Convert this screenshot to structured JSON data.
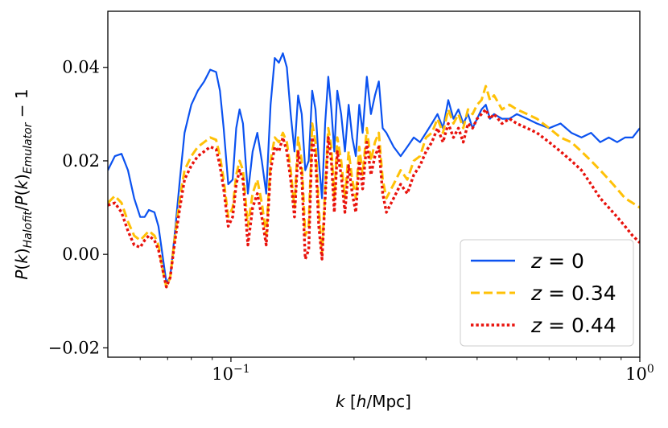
{
  "chart_data": {
    "type": "line",
    "xscale": "log",
    "xlim": [
      0.05,
      1.0
    ],
    "ylim": [
      -0.022,
      0.052
    ],
    "xlabel": "k  [h/Mpc]",
    "ylabel": "P(k)Halofit/P(k)Emulator − 1",
    "legend_position": "lower-right",
    "grid": false,
    "x_ticks": [
      {
        "value": 0.1,
        "label_base": "10",
        "label_exp": "−1"
      },
      {
        "value": 1.0,
        "label_base": "10",
        "label_exp": "0"
      }
    ],
    "y_ticks": [
      {
        "value": -0.02,
        "label": "−0.02"
      },
      {
        "value": 0.0,
        "label": "0.00"
      },
      {
        "value": 0.02,
        "label": "0.02"
      },
      {
        "value": 0.04,
        "label": "0.04"
      }
    ],
    "series": [
      {
        "name": "z = 0",
        "color": "#0b52f0",
        "style": "solid",
        "points": [
          [
            0.05,
            0.018
          ],
          [
            0.052,
            0.021
          ],
          [
            0.054,
            0.0215
          ],
          [
            0.056,
            0.018
          ],
          [
            0.058,
            0.012
          ],
          [
            0.06,
            0.008
          ],
          [
            0.0615,
            0.008
          ],
          [
            0.063,
            0.0095
          ],
          [
            0.065,
            0.009
          ],
          [
            0.0665,
            0.006
          ],
          [
            0.068,
            0.0
          ],
          [
            0.0695,
            -0.006
          ],
          [
            0.071,
            -0.005
          ],
          [
            0.073,
            0.005
          ],
          [
            0.075,
            0.016
          ],
          [
            0.077,
            0.026
          ],
          [
            0.08,
            0.032
          ],
          [
            0.083,
            0.035
          ],
          [
            0.086,
            0.037
          ],
          [
            0.089,
            0.0395
          ],
          [
            0.092,
            0.039
          ],
          [
            0.094,
            0.035
          ],
          [
            0.096,
            0.027
          ],
          [
            0.0985,
            0.015
          ],
          [
            0.101,
            0.016
          ],
          [
            0.103,
            0.027
          ],
          [
            0.105,
            0.031
          ],
          [
            0.107,
            0.028
          ],
          [
            0.11,
            0.013
          ],
          [
            0.113,
            0.022
          ],
          [
            0.116,
            0.026
          ],
          [
            0.119,
            0.02
          ],
          [
            0.122,
            0.013
          ],
          [
            0.125,
            0.032
          ],
          [
            0.128,
            0.042
          ],
          [
            0.131,
            0.041
          ],
          [
            0.134,
            0.043
          ],
          [
            0.137,
            0.04
          ],
          [
            0.14,
            0.03
          ],
          [
            0.143,
            0.022
          ],
          [
            0.146,
            0.034
          ],
          [
            0.149,
            0.03
          ],
          [
            0.152,
            0.018
          ],
          [
            0.155,
            0.02
          ],
          [
            0.158,
            0.035
          ],
          [
            0.161,
            0.031
          ],
          [
            0.164,
            0.02
          ],
          [
            0.167,
            0.012
          ],
          [
            0.17,
            0.028
          ],
          [
            0.173,
            0.038
          ],
          [
            0.176,
            0.031
          ],
          [
            0.179,
            0.022
          ],
          [
            0.182,
            0.035
          ],
          [
            0.186,
            0.03
          ],
          [
            0.19,
            0.022
          ],
          [
            0.194,
            0.032
          ],
          [
            0.198,
            0.025
          ],
          [
            0.202,
            0.021
          ],
          [
            0.206,
            0.032
          ],
          [
            0.21,
            0.026
          ],
          [
            0.215,
            0.038
          ],
          [
            0.22,
            0.03
          ],
          [
            0.225,
            0.034
          ],
          [
            0.23,
            0.037
          ],
          [
            0.235,
            0.027
          ],
          [
            0.24,
            0.026
          ],
          [
            0.25,
            0.023
          ],
          [
            0.26,
            0.021
          ],
          [
            0.27,
            0.023
          ],
          [
            0.28,
            0.025
          ],
          [
            0.29,
            0.024
          ],
          [
            0.3,
            0.026
          ],
          [
            0.31,
            0.028
          ],
          [
            0.32,
            0.03
          ],
          [
            0.33,
            0.027
          ],
          [
            0.34,
            0.033
          ],
          [
            0.35,
            0.029
          ],
          [
            0.36,
            0.031
          ],
          [
            0.37,
            0.028
          ],
          [
            0.38,
            0.03
          ],
          [
            0.39,
            0.027
          ],
          [
            0.4,
            0.029
          ],
          [
            0.41,
            0.031
          ],
          [
            0.42,
            0.032
          ],
          [
            0.43,
            0.029
          ],
          [
            0.44,
            0.03
          ],
          [
            0.46,
            0.029
          ],
          [
            0.48,
            0.029
          ],
          [
            0.5,
            0.03
          ],
          [
            0.53,
            0.029
          ],
          [
            0.56,
            0.028
          ],
          [
            0.6,
            0.027
          ],
          [
            0.64,
            0.028
          ],
          [
            0.68,
            0.026
          ],
          [
            0.72,
            0.025
          ],
          [
            0.76,
            0.026
          ],
          [
            0.8,
            0.024
          ],
          [
            0.84,
            0.025
          ],
          [
            0.88,
            0.024
          ],
          [
            0.92,
            0.025
          ],
          [
            0.96,
            0.025
          ],
          [
            1.0,
            0.027
          ]
        ]
      },
      {
        "name": "z = 0.34",
        "color": "#ffc107",
        "style": "dashed",
        "points": [
          [
            0.05,
            0.011
          ],
          [
            0.052,
            0.0125
          ],
          [
            0.054,
            0.011
          ],
          [
            0.056,
            0.007
          ],
          [
            0.058,
            0.004
          ],
          [
            0.06,
            0.003
          ],
          [
            0.0615,
            0.004
          ],
          [
            0.063,
            0.005
          ],
          [
            0.065,
            0.004
          ],
          [
            0.0665,
            0.002
          ],
          [
            0.068,
            -0.003
          ],
          [
            0.0695,
            -0.007
          ],
          [
            0.071,
            -0.005
          ],
          [
            0.073,
            0.004
          ],
          [
            0.075,
            0.012
          ],
          [
            0.077,
            0.018
          ],
          [
            0.08,
            0.021
          ],
          [
            0.083,
            0.023
          ],
          [
            0.086,
            0.024
          ],
          [
            0.089,
            0.025
          ],
          [
            0.092,
            0.0245
          ],
          [
            0.094,
            0.021
          ],
          [
            0.096,
            0.016
          ],
          [
            0.0985,
            0.008
          ],
          [
            0.101,
            0.01
          ],
          [
            0.103,
            0.017
          ],
          [
            0.105,
            0.02
          ],
          [
            0.107,
            0.018
          ],
          [
            0.11,
            0.006
          ],
          [
            0.113,
            0.013
          ],
          [
            0.116,
            0.016
          ],
          [
            0.119,
            0.011
          ],
          [
            0.122,
            0.004
          ],
          [
            0.125,
            0.02
          ],
          [
            0.128,
            0.025
          ],
          [
            0.131,
            0.024
          ],
          [
            0.134,
            0.026
          ],
          [
            0.137,
            0.024
          ],
          [
            0.14,
            0.018
          ],
          [
            0.143,
            0.01
          ],
          [
            0.146,
            0.025
          ],
          [
            0.149,
            0.02
          ],
          [
            0.152,
            0.004
          ],
          [
            0.155,
            0.006
          ],
          [
            0.158,
            0.028
          ],
          [
            0.161,
            0.024
          ],
          [
            0.164,
            0.01
          ],
          [
            0.167,
            0.0
          ],
          [
            0.17,
            0.014
          ],
          [
            0.173,
            0.027
          ],
          [
            0.176,
            0.023
          ],
          [
            0.179,
            0.012
          ],
          [
            0.182,
            0.025
          ],
          [
            0.186,
            0.02
          ],
          [
            0.19,
            0.012
          ],
          [
            0.194,
            0.022
          ],
          [
            0.198,
            0.016
          ],
          [
            0.202,
            0.012
          ],
          [
            0.206,
            0.023
          ],
          [
            0.21,
            0.017
          ],
          [
            0.215,
            0.027
          ],
          [
            0.22,
            0.02
          ],
          [
            0.225,
            0.024
          ],
          [
            0.23,
            0.026
          ],
          [
            0.235,
            0.016
          ],
          [
            0.24,
            0.012
          ],
          [
            0.25,
            0.015
          ],
          [
            0.26,
            0.018
          ],
          [
            0.27,
            0.016
          ],
          [
            0.28,
            0.02
          ],
          [
            0.29,
            0.021
          ],
          [
            0.3,
            0.025
          ],
          [
            0.31,
            0.026
          ],
          [
            0.32,
            0.029
          ],
          [
            0.33,
            0.026
          ],
          [
            0.34,
            0.031
          ],
          [
            0.35,
            0.028
          ],
          [
            0.36,
            0.03
          ],
          [
            0.37,
            0.027
          ],
          [
            0.38,
            0.031
          ],
          [
            0.39,
            0.03
          ],
          [
            0.4,
            0.032
          ],
          [
            0.41,
            0.033
          ],
          [
            0.42,
            0.036
          ],
          [
            0.43,
            0.033
          ],
          [
            0.44,
            0.034
          ],
          [
            0.46,
            0.031
          ],
          [
            0.48,
            0.032
          ],
          [
            0.5,
            0.031
          ],
          [
            0.53,
            0.03
          ],
          [
            0.56,
            0.029
          ],
          [
            0.6,
            0.027
          ],
          [
            0.64,
            0.025
          ],
          [
            0.68,
            0.024
          ],
          [
            0.72,
            0.022
          ],
          [
            0.76,
            0.02
          ],
          [
            0.8,
            0.018
          ],
          [
            0.84,
            0.016
          ],
          [
            0.88,
            0.014
          ],
          [
            0.92,
            0.012
          ],
          [
            0.96,
            0.011
          ],
          [
            1.0,
            0.01
          ]
        ]
      },
      {
        "name": "z = 0.44",
        "color": "#e8120c",
        "style": "dotted",
        "points": [
          [
            0.05,
            0.0105
          ],
          [
            0.052,
            0.011
          ],
          [
            0.054,
            0.009
          ],
          [
            0.056,
            0.005
          ],
          [
            0.058,
            0.002
          ],
          [
            0.06,
            0.0015
          ],
          [
            0.0615,
            0.003
          ],
          [
            0.063,
            0.004
          ],
          [
            0.065,
            0.003
          ],
          [
            0.0665,
            0.001
          ],
          [
            0.068,
            -0.003
          ],
          [
            0.0695,
            -0.007
          ],
          [
            0.071,
            -0.005
          ],
          [
            0.073,
            0.003
          ],
          [
            0.075,
            0.01
          ],
          [
            0.077,
            0.016
          ],
          [
            0.08,
            0.019
          ],
          [
            0.083,
            0.021
          ],
          [
            0.086,
            0.022
          ],
          [
            0.089,
            0.023
          ],
          [
            0.092,
            0.0225
          ],
          [
            0.094,
            0.019
          ],
          [
            0.096,
            0.014
          ],
          [
            0.0985,
            0.006
          ],
          [
            0.101,
            0.008
          ],
          [
            0.103,
            0.015
          ],
          [
            0.105,
            0.018
          ],
          [
            0.107,
            0.016
          ],
          [
            0.11,
            0.002
          ],
          [
            0.113,
            0.01
          ],
          [
            0.116,
            0.013
          ],
          [
            0.119,
            0.008
          ],
          [
            0.122,
            0.002
          ],
          [
            0.125,
            0.018
          ],
          [
            0.128,
            0.023
          ],
          [
            0.131,
            0.022
          ],
          [
            0.134,
            0.025
          ],
          [
            0.137,
            0.022
          ],
          [
            0.14,
            0.016
          ],
          [
            0.143,
            0.008
          ],
          [
            0.146,
            0.022
          ],
          [
            0.149,
            0.017
          ],
          [
            0.152,
            -0.001
          ],
          [
            0.155,
            0.001
          ],
          [
            0.158,
            0.025
          ],
          [
            0.161,
            0.021
          ],
          [
            0.164,
            0.006
          ],
          [
            0.167,
            -0.001
          ],
          [
            0.17,
            0.012
          ],
          [
            0.173,
            0.025
          ],
          [
            0.176,
            0.02
          ],
          [
            0.179,
            0.009
          ],
          [
            0.182,
            0.022
          ],
          [
            0.186,
            0.017
          ],
          [
            0.19,
            0.009
          ],
          [
            0.194,
            0.019
          ],
          [
            0.198,
            0.013
          ],
          [
            0.202,
            0.009
          ],
          [
            0.206,
            0.02
          ],
          [
            0.21,
            0.014
          ],
          [
            0.215,
            0.024
          ],
          [
            0.22,
            0.017
          ],
          [
            0.225,
            0.021
          ],
          [
            0.23,
            0.023
          ],
          [
            0.235,
            0.013
          ],
          [
            0.24,
            0.009
          ],
          [
            0.25,
            0.012
          ],
          [
            0.26,
            0.015
          ],
          [
            0.27,
            0.013
          ],
          [
            0.28,
            0.017
          ],
          [
            0.29,
            0.019
          ],
          [
            0.3,
            0.022
          ],
          [
            0.31,
            0.024
          ],
          [
            0.32,
            0.027
          ],
          [
            0.33,
            0.024
          ],
          [
            0.34,
            0.028
          ],
          [
            0.35,
            0.025
          ],
          [
            0.36,
            0.027
          ],
          [
            0.37,
            0.024
          ],
          [
            0.38,
            0.028
          ],
          [
            0.39,
            0.027
          ],
          [
            0.4,
            0.029
          ],
          [
            0.41,
            0.03
          ],
          [
            0.42,
            0.031
          ],
          [
            0.43,
            0.029
          ],
          [
            0.44,
            0.03
          ],
          [
            0.46,
            0.028
          ],
          [
            0.48,
            0.029
          ],
          [
            0.5,
            0.028
          ],
          [
            0.53,
            0.027
          ],
          [
            0.56,
            0.026
          ],
          [
            0.6,
            0.024
          ],
          [
            0.64,
            0.022
          ],
          [
            0.68,
            0.02
          ],
          [
            0.72,
            0.018
          ],
          [
            0.76,
            0.015
          ],
          [
            0.8,
            0.012
          ],
          [
            0.84,
            0.01
          ],
          [
            0.88,
            0.008
          ],
          [
            0.92,
            0.006
          ],
          [
            0.96,
            0.004
          ],
          [
            1.0,
            0.0025
          ]
        ]
      }
    ]
  }
}
